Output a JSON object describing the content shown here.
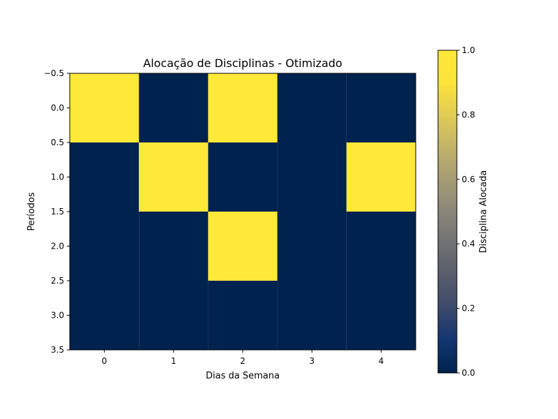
{
  "chart_data": {
    "type": "heatmap",
    "title": "Alocação de Disciplinas - Otimizado",
    "xlabel": "Dias da Semana",
    "ylabel": "Períodos",
    "x_ticks": [
      "0",
      "1",
      "2",
      "3",
      "4"
    ],
    "y_ticks": [
      "−0.5",
      "0.0",
      "0.5",
      "1.0",
      "1.5",
      "2.0",
      "2.5",
      "3.0",
      "3.5"
    ],
    "y_tick_values": [
      -0.5,
      0.0,
      0.5,
      1.0,
      1.5,
      2.0,
      2.5,
      3.0,
      3.5
    ],
    "xlim": [
      -0.5,
      4.5
    ],
    "ylim": [
      3.5,
      -0.5
    ],
    "matrix": [
      [
        1,
        0,
        1,
        0,
        0
      ],
      [
        0,
        1,
        0,
        0,
        1
      ],
      [
        0,
        0,
        1,
        0,
        0
      ],
      [
        0,
        0,
        0,
        0,
        0
      ]
    ],
    "colormap": "cividis",
    "colors": {
      "low": "#00224e",
      "high": "#fee838"
    },
    "colorbar": {
      "label": "Disciplina Alocada",
      "range": [
        0.0,
        1.0
      ],
      "ticks": [
        "0.0",
        "0.2",
        "0.4",
        "0.6",
        "0.8",
        "1.0"
      ],
      "tick_values": [
        0.0,
        0.2,
        0.4,
        0.6,
        0.8,
        1.0
      ]
    },
    "grid": false
  }
}
